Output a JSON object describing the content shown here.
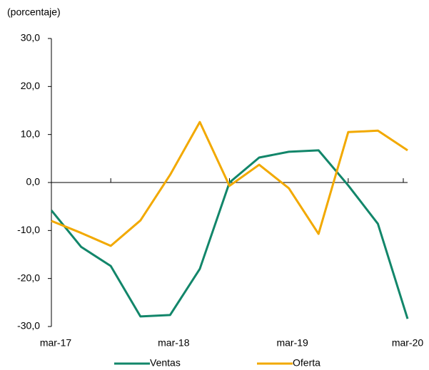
{
  "chart_data": {
    "type": "line",
    "subtitle": "(porcentaje)",
    "categories": [
      "mar-17",
      null,
      null,
      null,
      "mar-18",
      null,
      null,
      null,
      "mar-19",
      null,
      null,
      null,
      "mar-20"
    ],
    "series": [
      {
        "name": "Ventas",
        "color": "#12866a",
        "values": [
          -5.8,
          -13.4,
          -17.4,
          -27.9,
          -27.6,
          -18.0,
          0.0,
          5.2,
          6.4,
          6.7,
          -0.6,
          -8.6,
          -28.4
        ]
      },
      {
        "name": "Oferta",
        "color": "#f2a900",
        "values": [
          -8.0,
          -10.5,
          -13.2,
          -7.9,
          1.6,
          12.6,
          -0.7,
          3.7,
          -1.2,
          -10.7,
          10.5,
          10.8,
          6.7
        ]
      }
    ],
    "ylim": [
      -30,
      30
    ],
    "yticks": [
      {
        "value": -30,
        "label": "-30,0"
      },
      {
        "value": -20,
        "label": "-20,0"
      },
      {
        "value": -10,
        "label": "-10,0"
      },
      {
        "value": 0,
        "label": "0,0"
      },
      {
        "value": 10,
        "label": "10,0"
      },
      {
        "value": 20,
        "label": "20,0"
      },
      {
        "value": 30,
        "label": "30,0"
      }
    ]
  }
}
